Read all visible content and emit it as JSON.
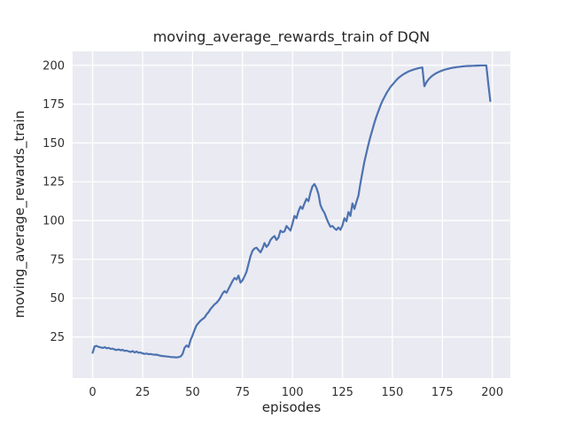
{
  "chart_data": {
    "type": "line",
    "title": "moving_average_rewards_train of DQN",
    "xlabel": "episodes",
    "ylabel": "moving_average_rewards_train",
    "xlim": [
      -10,
      209
    ],
    "ylim": [
      -1.5,
      209
    ],
    "xticks": [
      0,
      25,
      50,
      75,
      100,
      125,
      150,
      175,
      200
    ],
    "yticks": [
      25,
      50,
      75,
      100,
      125,
      150,
      175,
      200
    ],
    "grid": true,
    "legend": "none",
    "plot_background": "#eaeaf2",
    "grid_color": "#ffffff",
    "line_color": "#4c72b0",
    "series": [
      {
        "name": "moving_average_rewards_train",
        "x": [
          0,
          1,
          2,
          3,
          4,
          5,
          6,
          7,
          8,
          9,
          10,
          11,
          12,
          13,
          14,
          15,
          16,
          17,
          18,
          19,
          20,
          21,
          22,
          23,
          24,
          25,
          26,
          27,
          28,
          29,
          30,
          31,
          32,
          33,
          34,
          35,
          36,
          37,
          38,
          39,
          40,
          41,
          42,
          43,
          44,
          45,
          46,
          47,
          48,
          49,
          50,
          51,
          52,
          53,
          54,
          55,
          56,
          57,
          58,
          59,
          60,
          61,
          62,
          63,
          64,
          65,
          66,
          67,
          68,
          69,
          70,
          71,
          72,
          73,
          74,
          75,
          76,
          77,
          78,
          79,
          80,
          81,
          82,
          83,
          84,
          85,
          86,
          87,
          88,
          89,
          90,
          91,
          92,
          93,
          94,
          95,
          96,
          97,
          98,
          99,
          100,
          101,
          102,
          103,
          104,
          105,
          106,
          107,
          108,
          109,
          110,
          111,
          112,
          113,
          114,
          115,
          116,
          117,
          118,
          119,
          120,
          121,
          122,
          123,
          124,
          125,
          126,
          127,
          128,
          129,
          130,
          131,
          132,
          133,
          134,
          135,
          136,
          137,
          138,
          139,
          140,
          141,
          142,
          143,
          144,
          145,
          146,
          147,
          148,
          149,
          150,
          151,
          152,
          153,
          154,
          155,
          156,
          157,
          158,
          159,
          160,
          161,
          162,
          163,
          164,
          165,
          166,
          167,
          168,
          169,
          170,
          171,
          172,
          173,
          174,
          175,
          176,
          177,
          178,
          179,
          180,
          181,
          182,
          183,
          184,
          185,
          186,
          187,
          188,
          189,
          190,
          191,
          192,
          193,
          194,
          195,
          196,
          197,
          198,
          199
        ],
        "y": [
          14.8,
          18.9,
          19.2,
          18.6,
          18.3,
          17.9,
          18.4,
          17.7,
          18.0,
          17.3,
          17.5,
          16.9,
          16.6,
          17.0,
          16.4,
          16.7,
          16.0,
          16.2,
          15.7,
          15.3,
          15.9,
          15.0,
          15.6,
          14.8,
          15.0,
          14.4,
          14.1,
          14.3,
          13.9,
          14.0,
          13.7,
          13.5,
          13.6,
          13.2,
          12.9,
          12.7,
          12.6,
          12.4,
          12.3,
          12.1,
          12.0,
          11.9,
          11.8,
          12.0,
          12.4,
          14.0,
          18.0,
          19.5,
          18.5,
          23.0,
          26.0,
          29.5,
          32.5,
          34.0,
          35.5,
          36.5,
          37.5,
          39.5,
          41.0,
          43.0,
          44.5,
          46.0,
          47.0,
          48.5,
          50.5,
          53.0,
          54.5,
          53.5,
          56.0,
          58.5,
          61.0,
          63.0,
          62.0,
          64.5,
          60.0,
          61.5,
          64.0,
          67.0,
          72.0,
          77.0,
          80.5,
          82.0,
          82.5,
          81.0,
          79.5,
          82.0,
          85.5,
          83.0,
          84.5,
          87.5,
          89.0,
          90.0,
          87.5,
          89.0,
          93.5,
          92.5,
          93.0,
          96.5,
          95.0,
          93.5,
          98.0,
          103.0,
          101.5,
          106.0,
          109.0,
          107.5,
          111.0,
          114.0,
          112.5,
          118.0,
          122.0,
          123.5,
          121.0,
          117.0,
          110.0,
          107.0,
          105.0,
          101.5,
          98.5,
          96.0,
          96.5,
          95.0,
          94.0,
          95.5,
          94.0,
          96.8,
          101.5,
          99.5,
          105.5,
          103.0,
          111.0,
          107.5,
          112.0,
          116.0,
          124.0,
          131.0,
          138.0,
          143.5,
          149.0,
          154.0,
          158.5,
          163.0,
          167.0,
          170.5,
          174.0,
          177.0,
          179.5,
          182.0,
          184.0,
          186.0,
          187.5,
          189.0,
          190.5,
          191.8,
          192.8,
          193.8,
          194.6,
          195.3,
          196.0,
          196.5,
          197.0,
          197.4,
          197.8,
          198.1,
          198.4,
          198.6,
          186.5,
          189.0,
          190.8,
          192.2,
          193.3,
          194.2,
          195.0,
          195.6,
          196.2,
          196.7,
          197.1,
          197.5,
          197.8,
          198.1,
          198.4,
          198.6,
          198.8,
          199.0,
          199.1,
          199.3,
          199.4,
          199.5,
          199.6,
          199.6,
          199.7,
          199.7,
          199.8,
          199.8,
          199.9,
          199.9,
          199.9,
          199.9,
          188.0,
          177.0
        ]
      }
    ]
  }
}
